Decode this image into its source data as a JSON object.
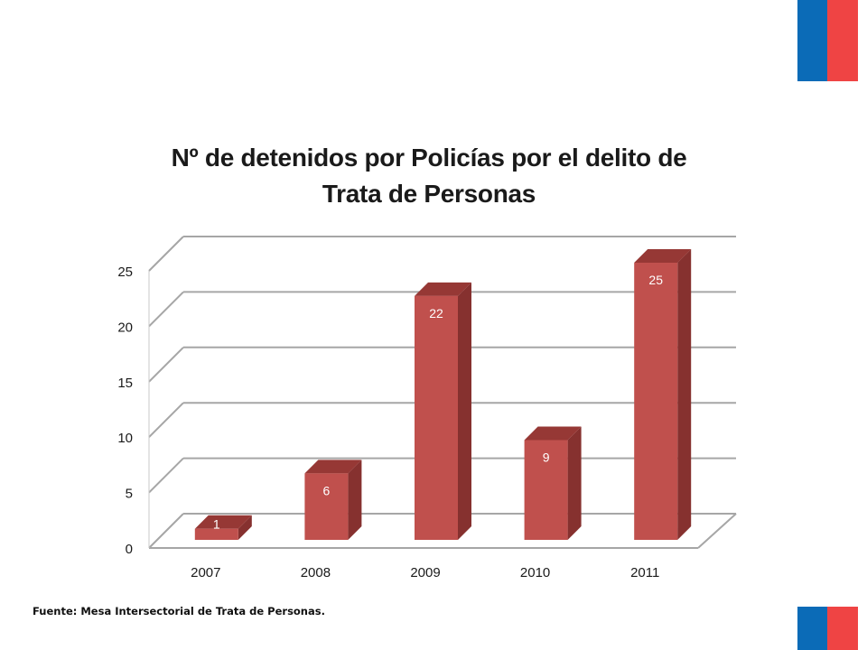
{
  "brand": {
    "flag_blue": "#0b6bb7",
    "flag_red": "#ef4444"
  },
  "chart_data": {
    "type": "bar",
    "title": "Nº de detenidos por Policías por el delito de Trata de Personas",
    "title_lines": [
      "Nº de detenidos por Policías por el delito de",
      "Trata de Personas"
    ],
    "categories": [
      "2007",
      "2008",
      "2009",
      "2010",
      "2011"
    ],
    "values": [
      1,
      6,
      22,
      9,
      25
    ],
    "data_labels": [
      "1",
      "6",
      "22",
      "9",
      "25"
    ],
    "yticks": [
      "0",
      "5",
      "10",
      "15",
      "20",
      "25"
    ],
    "ylim": [
      0,
      25
    ],
    "grid": true,
    "legend": "none",
    "style": "3d-column",
    "bar_color": "#c0504d",
    "bar_side_color": "#86312f",
    "bar_top_color": "#963835"
  },
  "footer": {
    "source": "Fuente: Mesa Intersectorial de Trata de Personas."
  }
}
